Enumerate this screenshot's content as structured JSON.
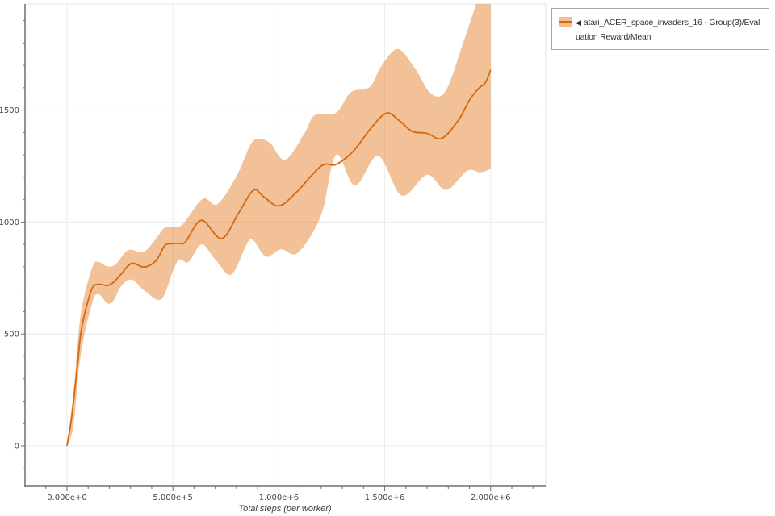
{
  "legend": {
    "marker": "◀",
    "label": "atari_ACER_space_invaders_16 - Group(3)/Evaluation Reward/Mean",
    "swatch_band_color": "#f2bd92",
    "swatch_line_color": "#d4690f",
    "border_color": "#a6a6a6"
  },
  "colors": {
    "grid": "#ebebeb",
    "frame": "#e3e3e3",
    "axis": "#6e6e6e",
    "tick_label": "#454545",
    "background": "#ffffff"
  },
  "chart_data": {
    "type": "line",
    "title": "",
    "xlabel": "Total steps (per worker)",
    "ylabel": "",
    "grid": true,
    "legend_position": "top-right",
    "xlim": [
      -198000,
      2260000
    ],
    "ylim": [
      -180,
      1974
    ],
    "x_major_ticks": [
      0,
      500000,
      1000000,
      1500000,
      2000000
    ],
    "x_tick_labels": [
      "0.000e+0",
      "5.000e+5",
      "1.000e+6",
      "1.500e+6",
      "2.000e+6"
    ],
    "x_minor_tick_step": 100000,
    "y_major_ticks": [
      0,
      500,
      1000,
      1500
    ],
    "y_tick_labels": [
      "0",
      "500",
      "1000",
      "1500"
    ],
    "y_minor_tick_step": 100,
    "y_gridlines": [
      0,
      500,
      1000,
      1500
    ],
    "series": [
      {
        "name": "atari_ACER_space_invaders_16 - Group(3)/Evaluation Reward/Mean",
        "color": "#d4690f",
        "band_fill": "rgba(226,118,25,0.45)",
        "mean": [
          [
            0,
            0
          ],
          [
            20000,
            115
          ],
          [
            45000,
            320
          ],
          [
            65000,
            500
          ],
          [
            90000,
            615
          ],
          [
            120000,
            706
          ],
          [
            150000,
            722
          ],
          [
            190000,
            716
          ],
          [
            220000,
            731
          ],
          [
            255000,
            767
          ],
          [
            305000,
            815
          ],
          [
            365000,
            799
          ],
          [
            420000,
            827
          ],
          [
            460000,
            893
          ],
          [
            490000,
            903
          ],
          [
            530000,
            905
          ],
          [
            560000,
            912
          ],
          [
            635000,
            1008
          ],
          [
            730000,
            926
          ],
          [
            810000,
            1040
          ],
          [
            880000,
            1142
          ],
          [
            930000,
            1112
          ],
          [
            1000000,
            1072
          ],
          [
            1080000,
            1130
          ],
          [
            1200000,
            1250
          ],
          [
            1270000,
            1257
          ],
          [
            1350000,
            1315
          ],
          [
            1440000,
            1425
          ],
          [
            1510000,
            1487
          ],
          [
            1570000,
            1452
          ],
          [
            1630000,
            1405
          ],
          [
            1700000,
            1396
          ],
          [
            1770000,
            1374
          ],
          [
            1850000,
            1458
          ],
          [
            1900000,
            1545
          ],
          [
            1945000,
            1598
          ],
          [
            1975000,
            1622
          ],
          [
            2000000,
            1680
          ]
        ],
        "band_upper": [
          [
            0,
            0
          ],
          [
            30000,
            230
          ],
          [
            65000,
            587
          ],
          [
            120000,
            797
          ],
          [
            150000,
            821
          ],
          [
            190000,
            802
          ],
          [
            230000,
            812
          ],
          [
            290000,
            875
          ],
          [
            360000,
            866
          ],
          [
            420000,
            925
          ],
          [
            465000,
            977
          ],
          [
            540000,
            985
          ],
          [
            640000,
            1103
          ],
          [
            710000,
            1080
          ],
          [
            800000,
            1205
          ],
          [
            865000,
            1343
          ],
          [
            905000,
            1372
          ],
          [
            960000,
            1352
          ],
          [
            1030000,
            1278
          ],
          [
            1120000,
            1395
          ],
          [
            1170000,
            1478
          ],
          [
            1270000,
            1488
          ],
          [
            1340000,
            1580
          ],
          [
            1430000,
            1604
          ],
          [
            1480000,
            1690
          ],
          [
            1560000,
            1773
          ],
          [
            1640000,
            1690
          ],
          [
            1720000,
            1572
          ],
          [
            1790000,
            1590
          ],
          [
            1870000,
            1800
          ],
          [
            1930000,
            1970
          ],
          [
            1970000,
            2090
          ],
          [
            2000000,
            2160
          ]
        ],
        "band_lower": [
          [
            0,
            0
          ],
          [
            30000,
            90
          ],
          [
            65000,
            407
          ],
          [
            120000,
            641
          ],
          [
            150000,
            677
          ],
          [
            190000,
            637
          ],
          [
            220000,
            650
          ],
          [
            255000,
            713
          ],
          [
            305000,
            743
          ],
          [
            370000,
            690
          ],
          [
            445000,
            655
          ],
          [
            500000,
            780
          ],
          [
            530000,
            832
          ],
          [
            575000,
            822
          ],
          [
            635000,
            900
          ],
          [
            700000,
            833
          ],
          [
            775000,
            765
          ],
          [
            850000,
            903
          ],
          [
            880000,
            917
          ],
          [
            940000,
            845
          ],
          [
            1010000,
            878
          ],
          [
            1090000,
            863
          ],
          [
            1200000,
            1031
          ],
          [
            1270000,
            1300
          ],
          [
            1360000,
            1163
          ],
          [
            1470000,
            1295
          ],
          [
            1580000,
            1118
          ],
          [
            1700000,
            1211
          ],
          [
            1790000,
            1143
          ],
          [
            1890000,
            1229
          ],
          [
            1950000,
            1222
          ],
          [
            2000000,
            1237
          ]
        ]
      }
    ]
  }
}
